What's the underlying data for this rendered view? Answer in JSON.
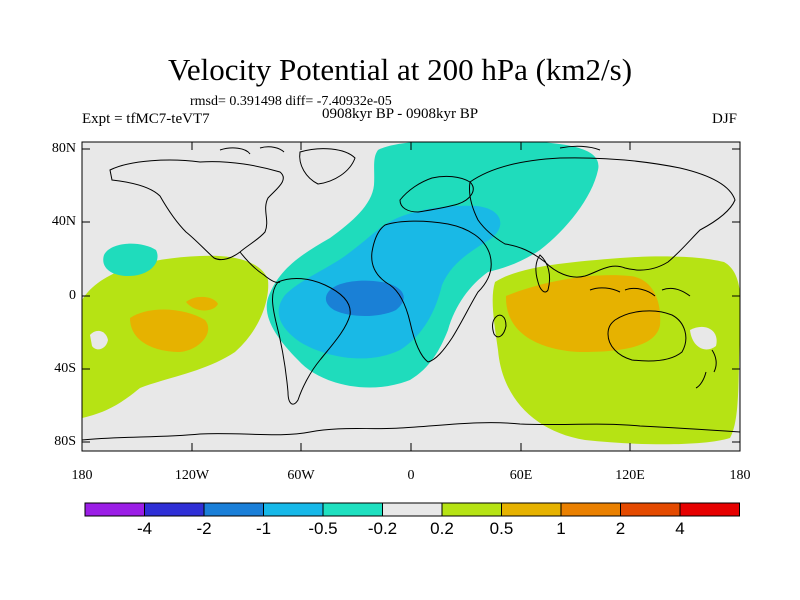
{
  "header": {
    "title": "Velocity Potential at 200 hPa (km2/s)",
    "stats": "rmsd= 0.391498 diff= -7.40932e-05",
    "experiment": "Expt = tfMC7-teVT7",
    "period": "0908kyr BP - 0908kyr BP",
    "season": "DJF"
  },
  "axes": {
    "y_labels": [
      "80N",
      "40N",
      "0",
      "40S",
      "80S"
    ],
    "x_labels": [
      "180",
      "120W",
      "60W",
      "0",
      "60E",
      "120E",
      "180"
    ]
  },
  "colorbar": {
    "labels": [
      "-4",
      "-2",
      "-1",
      "-0.5",
      "-0.2",
      "0.2",
      "0.5",
      "1",
      "2",
      "4"
    ],
    "colors": [
      "#9b1ee6",
      "#2f2fd6",
      "#1a7fd8",
      "#16b8e8",
      "#1fe0c0",
      "#e8e8e8",
      "#b6e314",
      "#e6b200",
      "#ea8000",
      "#e44a00",
      "#e60000"
    ]
  },
  "map_colors": {
    "neutral": "#e8e8e8",
    "neg_02": "#1fdcbc",
    "neg_05": "#19b9e6",
    "neg_1": "#1a80d6",
    "pos_02": "#b6e314",
    "pos_05": "#e6b200"
  }
}
